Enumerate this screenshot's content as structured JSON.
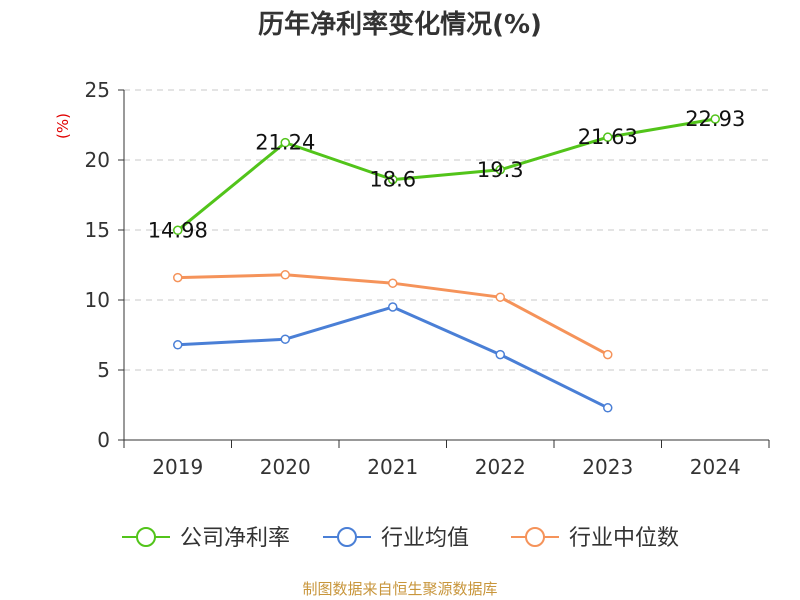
{
  "title": "历年净利率变化情况(%)",
  "source": "制图数据来自恒生聚源数据库",
  "chart_data": {
    "type": "line",
    "title": "历年净利率变化情况(%)",
    "ylabel": "(%)",
    "xlabel": "",
    "categories": [
      "2019",
      "2020",
      "2021",
      "2022",
      "2023",
      "2024"
    ],
    "ylim": [
      0,
      25
    ],
    "yticks": [
      0,
      5,
      10,
      15,
      20,
      25
    ],
    "grid": true,
    "legend_position": "bottom",
    "series": [
      {
        "name": "公司净利率",
        "color": "#52c41a",
        "values": [
          14.98,
          21.24,
          18.6,
          19.3,
          21.63,
          22.93
        ],
        "labels": [
          "14.98",
          "21.24",
          "18.6",
          "19.3",
          "21.63",
          "22.93"
        ]
      },
      {
        "name": "行业均值",
        "color": "#4a7fd6",
        "values": [
          6.8,
          7.2,
          9.5,
          6.1,
          2.3,
          null
        ]
      },
      {
        "name": "行业中位数",
        "color": "#f5935a",
        "values": [
          11.6,
          11.8,
          11.2,
          10.2,
          6.1,
          null
        ]
      }
    ]
  }
}
